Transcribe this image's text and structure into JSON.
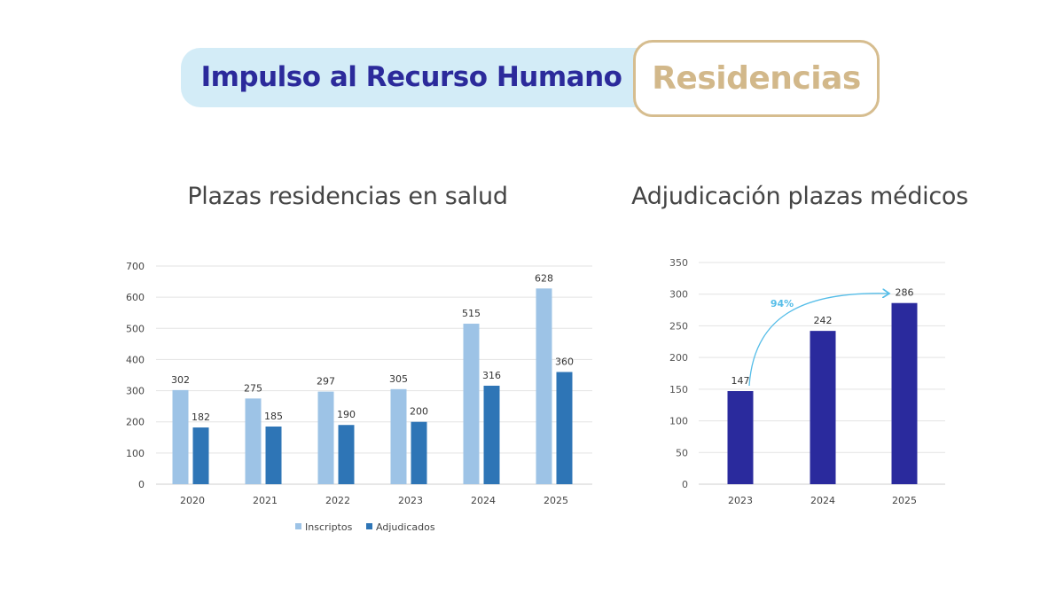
{
  "header": {
    "title": "Impulso al Recurso Humano",
    "badge": "Residencias"
  },
  "colors": {
    "inscriptos": "#9dc3e6",
    "adjudicados": "#2e75b6",
    "medicos": "#2a2a9d",
    "arrow": "#55bde8"
  },
  "chart_data": [
    {
      "type": "bar",
      "title": "Plazas residencias en salud",
      "categories": [
        "2020",
        "2021",
        "2022",
        "2023",
        "2024",
        "2025"
      ],
      "series": [
        {
          "name": "Inscriptos",
          "values": [
            302,
            275,
            297,
            305,
            515,
            628
          ]
        },
        {
          "name": "Adjudicados",
          "values": [
            182,
            185,
            190,
            200,
            316,
            360
          ]
        }
      ],
      "yticks": [
        0,
        100,
        200,
        300,
        400,
        500,
        600,
        700
      ],
      "ylim": [
        0,
        700
      ],
      "grid": true,
      "legend": "bottom"
    },
    {
      "type": "bar",
      "title": "Adjudicación plazas médicos",
      "categories": [
        "2023",
        "2024",
        "2025"
      ],
      "values": [
        147,
        242,
        286
      ],
      "yticks": [
        0,
        50,
        100,
        150,
        200,
        250,
        300,
        350
      ],
      "ylim": [
        0,
        350
      ],
      "grid": true,
      "annotation": "94%"
    }
  ]
}
